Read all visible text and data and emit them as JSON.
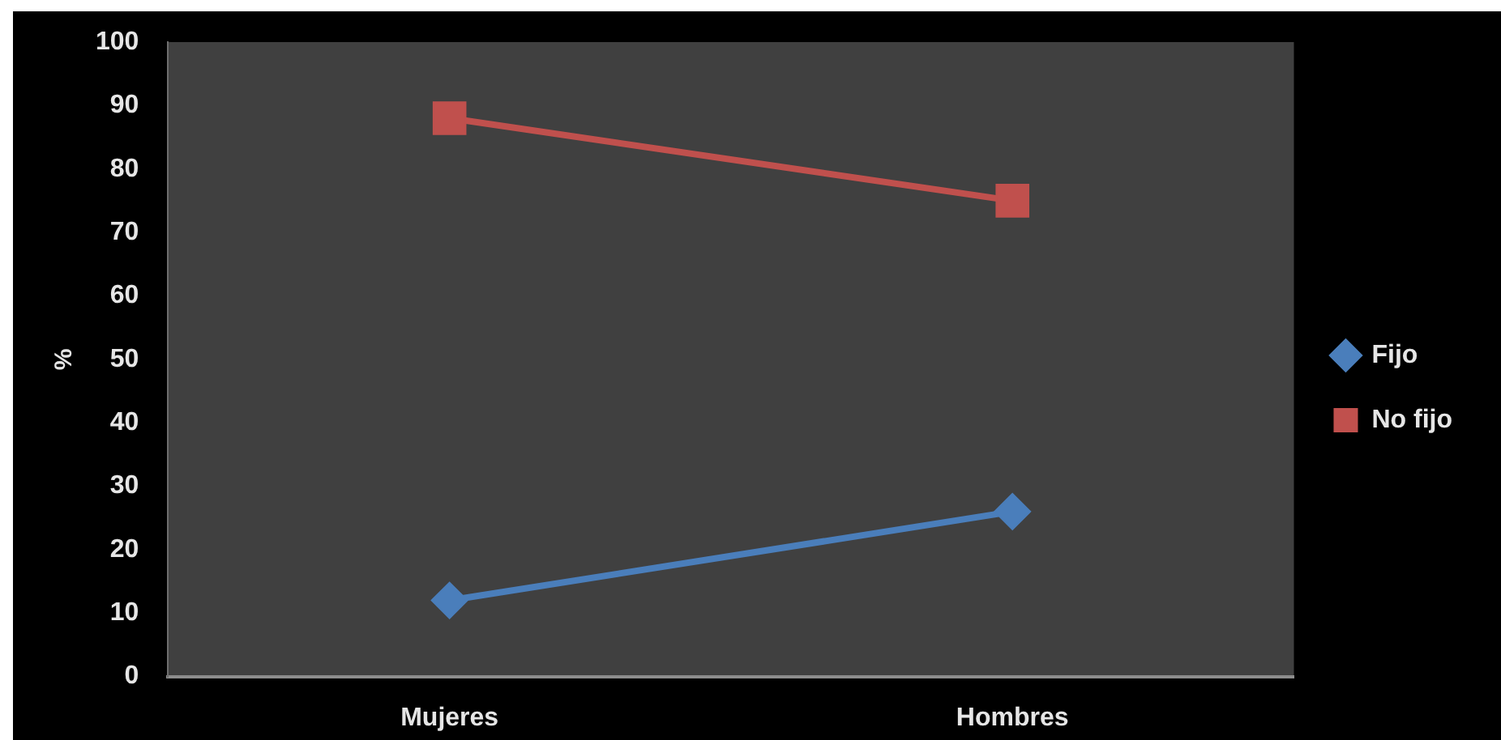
{
  "chart_data": {
    "type": "line",
    "ylabel": "%",
    "categories": [
      "Mujeres",
      "Hombres"
    ],
    "series": [
      {
        "name": "Fijo",
        "color": "#4a7ebb",
        "values": [
          12,
          26
        ],
        "marker": "diamond"
      },
      {
        "name": "No fijo",
        "color": "#c0504d",
        "values": [
          88,
          75
        ],
        "marker": "square"
      }
    ],
    "ylim": [
      0,
      100
    ],
    "yticks": [
      0,
      10,
      20,
      30,
      40,
      50,
      60,
      70,
      80,
      90,
      100
    ],
    "grid": false,
    "legend": "right",
    "line_style": "solid"
  }
}
